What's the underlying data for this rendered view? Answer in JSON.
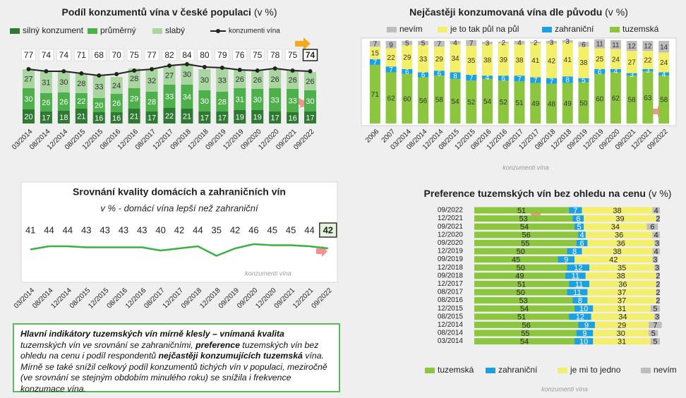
{
  "chart_data": [
    {
      "type": "bar",
      "stacked": true,
      "title": "Podíl konzumentů vína v české populaci",
      "title_suffix": "(v %)",
      "categories": [
        "03/2014",
        "08/2014",
        "12/2014",
        "08/2015",
        "12/2015",
        "08/2016",
        "12/2016",
        "08/2017",
        "12/2017",
        "09/2018",
        "12/2018",
        "09/2019",
        "12/2019",
        "09/2020",
        "12/2020",
        "09/2021",
        "09/2022"
      ],
      "series": [
        {
          "name": "silný konzument",
          "color": "#2f7a33",
          "values": [
            20,
            17,
            18,
            21,
            16,
            16,
            21,
            17,
            22,
            21,
            17,
            17,
            19,
            19,
            17,
            16,
            17
          ]
        },
        {
          "name": "průměrný",
          "color": "#4db04a",
          "values": [
            30,
            26,
            26,
            22,
            20,
            26,
            29,
            28,
            33,
            34,
            30,
            28,
            31,
            30,
            33,
            33,
            30
          ]
        },
        {
          "name": "slabý",
          "color": "#a8d5a0",
          "values": [
            27,
            31,
            30,
            28,
            33,
            24,
            28,
            32,
            27,
            30,
            30,
            33,
            26,
            26,
            26,
            26,
            26
          ]
        },
        {
          "name": "konzumenti vína",
          "color": "#222222",
          "type": "line",
          "values": [
            77,
            74,
            74,
            71,
            68,
            70,
            75,
            77,
            82,
            84,
            80,
            79,
            76,
            75,
            78,
            75,
            74
          ]
        }
      ],
      "ylim": [
        0,
        100
      ]
    },
    {
      "type": "bar",
      "stacked": true,
      "title": "Nejčastěji konzumovaná vína dle původu",
      "title_suffix": "(v %)",
      "note": "konzumenti vína",
      "categories": [
        "2006",
        "2007",
        "03/2014",
        "08/2014",
        "12/2014",
        "08/2015",
        "12/2015",
        "08/2016",
        "12/2016",
        "08/2017",
        "12/2017",
        "08/2018",
        "12/2018",
        "09/2019",
        "12/2019",
        "09/2020",
        "09/2021",
        "12/2021",
        "09/2022"
      ],
      "series": [
        {
          "name": "tuzemská",
          "color": "#8cc63f",
          "values": [
            71,
            62,
            60,
            56,
            58,
            54,
            52,
            54,
            52,
            51,
            49,
            48,
            49,
            50,
            60,
            62,
            58,
            63,
            58
          ]
        },
        {
          "name": "zahraniční",
          "color": "#1ba1e2",
          "values": [
            7,
            7,
            6,
            6,
            6,
            8,
            7,
            4,
            6,
            7,
            7,
            7,
            8,
            5,
            6,
            4,
            3,
            3,
            4
          ]
        },
        {
          "name": "je to tak půl na půl",
          "color": "#f4ef6a",
          "values": [
            15,
            22,
            29,
            33,
            29,
            34,
            35,
            38,
            39,
            38,
            41,
            42,
            41,
            38,
            25,
            24,
            27,
            22,
            24
          ]
        },
        {
          "name": "nevím",
          "color": "#bdbdbd",
          "values": [
            7,
            9,
            5,
            5,
            7,
            4,
            7,
            3,
            2,
            4,
            2,
            3,
            3,
            6,
            11,
            11,
            12,
            12,
            14
          ]
        }
      ],
      "legend_order": [
        3,
        2,
        1,
        0
      ],
      "ylim": [
        0,
        100
      ]
    },
    {
      "type": "line",
      "title": "Srovnání kvality domácích a zahraničních vín",
      "subtitle": "v % - domácí vína lepší než zahraniční",
      "note": "konzumenti vína",
      "categories": [
        "03/2014",
        "08/2014",
        "12/2014",
        "08/2015",
        "12/2015",
        "08/2016",
        "12/2016",
        "08/2017",
        "12/2017",
        "09/2018",
        "12/2018",
        "09/2019",
        "09/2020",
        "12/2020",
        "09/2021",
        "12/2021",
        "09/2022"
      ],
      "values": [
        41,
        44,
        44,
        43,
        43,
        43,
        43,
        40,
        42,
        44,
        35,
        42,
        46,
        45,
        45,
        44,
        42
      ],
      "color": "#3cb043",
      "ylim": [
        20,
        60
      ]
    },
    {
      "type": "hbar",
      "stacked": true,
      "title": "Preference tuzemských vín bez ohledu na cenu",
      "title_suffix": "(v %)",
      "note": "konzumenti vína",
      "categories": [
        "09/2022",
        "12/2021",
        "09/2021",
        "12/2020",
        "09/2020",
        "12/2019",
        "09/2019",
        "12/2018",
        "09/2018",
        "12/2017",
        "08/2017",
        "08/2016",
        "12/2015",
        "08/2015",
        "12/2014",
        "08/2014",
        "03/2014"
      ],
      "series": [
        {
          "name": "tuzemská",
          "color": "#8cc63f",
          "values": [
            51,
            53,
            54,
            56,
            55,
            50,
            45,
            50,
            49,
            51,
            50,
            53,
            54,
            51,
            56,
            55,
            54
          ]
        },
        {
          "name": "zahraniční",
          "color": "#1ba1e2",
          "values": [
            7,
            6,
            5,
            4,
            6,
            8,
            9,
            12,
            11,
            11,
            11,
            8,
            10,
            12,
            9,
            9,
            10
          ]
        },
        {
          "name": "je mi to jedno",
          "color": "#f4ef6a",
          "values": [
            38,
            39,
            34,
            36,
            36,
            38,
            42,
            35,
            38,
            36,
            37,
            37,
            31,
            34,
            29,
            30,
            31
          ]
        },
        {
          "name": "nevím",
          "color": "#bdbdbd",
          "values": [
            4,
            2,
            6,
            4,
            3,
            4,
            3,
            3,
            2,
            2,
            2,
            2,
            5,
            3,
            7,
            5,
            5
          ]
        }
      ],
      "xlim": [
        0,
        100
      ]
    }
  ],
  "text_box": {
    "parts": [
      "Hlavní indikátory tuzemských vín mírně klesly – vnímaná kvalita",
      " tuzemských vín ve srovnání se zahraničními, ",
      "preference",
      " tuzemských vín bez ohledu na cenu i podíl respondentů ",
      "nejčastěji konzumujících tuzemská",
      " vína. Mírně se také snížil celkový podíl konzumentů tichých vín v populaci, meziročně (ve srovnání se stejným obdobím minulého roku) se snížila i frekvence konzumace vína."
    ]
  }
}
